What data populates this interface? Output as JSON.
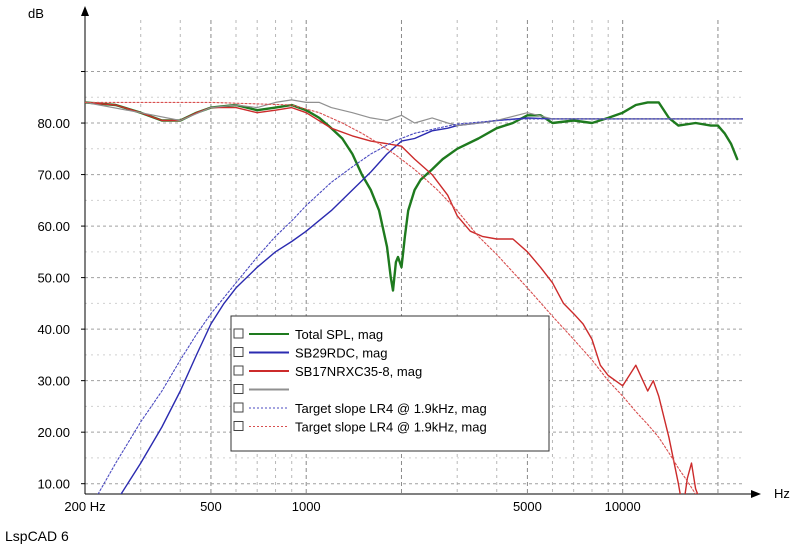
{
  "app_label": "LspCAD 6",
  "chart_data": {
    "type": "line",
    "x_scale": "log",
    "xlabel": "Hz",
    "ylabel": "dB",
    "xlim": [
      200,
      24000
    ],
    "ylim": [
      8,
      100
    ],
    "x_tick_labels": [
      {
        "x": 200,
        "label": "200 Hz"
      },
      {
        "x": 500,
        "label": "500"
      },
      {
        "x": 1000,
        "label": "1000"
      },
      {
        "x": 5000,
        "label": "5000"
      },
      {
        "x": 10000,
        "label": "10000"
      }
    ],
    "y_tick_labels": [
      {
        "y": 10,
        "label": "10.00"
      },
      {
        "y": 20,
        "label": "20.00"
      },
      {
        "y": 30,
        "label": "30.00"
      },
      {
        "y": 40,
        "label": "40.00"
      },
      {
        "y": 50,
        "label": "50.00"
      },
      {
        "y": 60,
        "label": "60.00"
      },
      {
        "y": 70,
        "label": "70.00"
      },
      {
        "y": 80,
        "label": "80.00"
      }
    ],
    "legend": {
      "position": "center-left",
      "entries": [
        {
          "label": "Total SPL, mag",
          "color": "#1e7a1e",
          "style": "solid"
        },
        {
          "label": "SB29RDC, mag",
          "color": "#2b2bb0",
          "style": "solid"
        },
        {
          "label": "SB17NRXC35-8, mag",
          "color": "#cc2b2b",
          "style": "solid"
        },
        {
          "label": "",
          "color": "#909090",
          "style": "solid"
        },
        {
          "label": "Target slope LR4 @ 1.9kHz, mag",
          "color": "#4a4ac0",
          "style": "dotted"
        },
        {
          "label": "Target slope LR4 @ 1.9kHz, mag",
          "color": "#d85050",
          "style": "dotted"
        }
      ]
    },
    "series": [
      {
        "name": "Total SPL, mag",
        "color": "#1e7a1e",
        "width": 2.4,
        "dash": "",
        "points": [
          [
            200,
            84
          ],
          [
            250,
            83.5
          ],
          [
            300,
            82
          ],
          [
            350,
            80.5
          ],
          [
            400,
            80.5
          ],
          [
            450,
            82
          ],
          [
            500,
            83
          ],
          [
            600,
            83.5
          ],
          [
            700,
            82.5
          ],
          [
            800,
            83
          ],
          [
            900,
            83.5
          ],
          [
            1000,
            82.5
          ],
          [
            1100,
            81
          ],
          [
            1200,
            79
          ],
          [
            1300,
            77
          ],
          [
            1400,
            74
          ],
          [
            1500,
            70
          ],
          [
            1600,
            67
          ],
          [
            1700,
            63
          ],
          [
            1800,
            56
          ],
          [
            1850,
            50
          ],
          [
            1880,
            47.5
          ],
          [
            1920,
            53
          ],
          [
            1950,
            54
          ],
          [
            2000,
            52
          ],
          [
            2050,
            58
          ],
          [
            2100,
            63
          ],
          [
            2200,
            67
          ],
          [
            2300,
            69
          ],
          [
            2500,
            71
          ],
          [
            2700,
            73
          ],
          [
            3000,
            75
          ],
          [
            3500,
            77
          ],
          [
            4000,
            79
          ],
          [
            4500,
            80
          ],
          [
            5000,
            81.5
          ],
          [
            5500,
            81.5
          ],
          [
            6000,
            80
          ],
          [
            7000,
            80.5
          ],
          [
            8000,
            80
          ],
          [
            9000,
            81
          ],
          [
            10000,
            82
          ],
          [
            11000,
            83.5
          ],
          [
            12000,
            84
          ],
          [
            13000,
            84
          ],
          [
            14000,
            81
          ],
          [
            15000,
            79.5
          ],
          [
            17000,
            80
          ],
          [
            19000,
            79.5
          ],
          [
            20000,
            79.5
          ],
          [
            21000,
            78
          ],
          [
            22000,
            76
          ],
          [
            23000,
            73
          ]
        ]
      },
      {
        "name": "SB29RDC, mag",
        "color": "#2b2bb0",
        "width": 1.4,
        "dash": "",
        "points": [
          [
            260,
            8
          ],
          [
            300,
            14
          ],
          [
            350,
            21
          ],
          [
            400,
            28
          ],
          [
            450,
            35
          ],
          [
            500,
            41
          ],
          [
            550,
            45
          ],
          [
            600,
            48
          ],
          [
            700,
            52
          ],
          [
            800,
            55
          ],
          [
            900,
            57
          ],
          [
            1000,
            59
          ],
          [
            1200,
            63
          ],
          [
            1400,
            67
          ],
          [
            1600,
            70.5
          ],
          [
            1800,
            74
          ],
          [
            2000,
            76.5
          ],
          [
            2200,
            77
          ],
          [
            2500,
            78.5
          ],
          [
            2800,
            79
          ],
          [
            3000,
            79.5
          ],
          [
            3500,
            80
          ],
          [
            4000,
            80.5
          ],
          [
            5000,
            81
          ],
          [
            6000,
            80.8
          ],
          [
            8000,
            80.8
          ],
          [
            10000,
            80.8
          ],
          [
            15000,
            80.8
          ],
          [
            24000,
            80.8
          ]
        ]
      },
      {
        "name": "SB17NRXC35-8, mag",
        "color": "#cc2b2b",
        "width": 1.4,
        "dash": "",
        "points": [
          [
            200,
            84
          ],
          [
            250,
            83.5
          ],
          [
            300,
            82
          ],
          [
            350,
            80.5
          ],
          [
            400,
            80.5
          ],
          [
            450,
            82
          ],
          [
            500,
            83
          ],
          [
            600,
            83
          ],
          [
            700,
            82
          ],
          [
            800,
            82.5
          ],
          [
            900,
            83
          ],
          [
            1000,
            82
          ],
          [
            1200,
            79
          ],
          [
            1400,
            77.5
          ],
          [
            1600,
            76.5
          ],
          [
            1800,
            76
          ],
          [
            2000,
            75.5
          ],
          [
            2200,
            73
          ],
          [
            2500,
            70
          ],
          [
            2800,
            66
          ],
          [
            3000,
            62
          ],
          [
            3300,
            59
          ],
          [
            3600,
            58
          ],
          [
            4000,
            57.5
          ],
          [
            4500,
            57.5
          ],
          [
            5000,
            55
          ],
          [
            5500,
            52
          ],
          [
            6000,
            49
          ],
          [
            6500,
            45
          ],
          [
            7000,
            43
          ],
          [
            7500,
            41
          ],
          [
            8000,
            38
          ],
          [
            8500,
            33
          ],
          [
            9000,
            31
          ],
          [
            10000,
            29
          ],
          [
            11000,
            33
          ],
          [
            12000,
            28
          ],
          [
            12500,
            30
          ],
          [
            13000,
            27
          ],
          [
            14000,
            19
          ],
          [
            15000,
            10
          ],
          [
            15500,
            5
          ],
          [
            16000,
            11
          ],
          [
            16500,
            14
          ],
          [
            17000,
            9
          ],
          [
            17500,
            7
          ]
        ]
      },
      {
        "name": "",
        "color": "#909090",
        "width": 1.2,
        "dash": "",
        "points": [
          [
            200,
            84
          ],
          [
            300,
            82
          ],
          [
            400,
            80.5
          ],
          [
            500,
            83
          ],
          [
            600,
            83.5
          ],
          [
            700,
            83
          ],
          [
            800,
            84
          ],
          [
            900,
            84.5
          ],
          [
            1000,
            84
          ],
          [
            1100,
            84
          ],
          [
            1200,
            83
          ],
          [
            1400,
            82
          ],
          [
            1600,
            81
          ],
          [
            1800,
            80.5
          ],
          [
            2000,
            81.5
          ],
          [
            2200,
            80
          ],
          [
            2500,
            81
          ],
          [
            2800,
            80
          ],
          [
            3000,
            79.5
          ],
          [
            3500,
            80
          ],
          [
            4000,
            80.5
          ],
          [
            5000,
            82
          ],
          [
            6000,
            80.8
          ],
          [
            8000,
            80.8
          ],
          [
            10000,
            80.8
          ],
          [
            15000,
            80.8
          ],
          [
            24000,
            80.8
          ]
        ]
      },
      {
        "name": "Target slope LR4 @ 1.9kHz, mag",
        "color": "#4a4ac0",
        "width": 1.1,
        "dash": "2,2",
        "points": [
          [
            220,
            8
          ],
          [
            250,
            14
          ],
          [
            300,
            22
          ],
          [
            350,
            28
          ],
          [
            400,
            34
          ],
          [
            450,
            39
          ],
          [
            500,
            43
          ],
          [
            600,
            49
          ],
          [
            700,
            54
          ],
          [
            800,
            58
          ],
          [
            900,
            61
          ],
          [
            1000,
            64
          ],
          [
            1200,
            68.5
          ],
          [
            1400,
            71.5
          ],
          [
            1600,
            74
          ],
          [
            1900,
            76.5
          ],
          [
            2200,
            78
          ],
          [
            2600,
            79
          ],
          [
            3000,
            79.8
          ],
          [
            4000,
            80.5
          ],
          [
            5000,
            80.8
          ],
          [
            10000,
            80.8
          ],
          [
            24000,
            80.8
          ]
        ]
      },
      {
        "name": "Target slope LR4 @ 1.9kHz, mag",
        "color": "#d85050",
        "width": 1.1,
        "dash": "2,2",
        "points": [
          [
            200,
            84
          ],
          [
            500,
            84
          ],
          [
            900,
            83.5
          ],
          [
            1100,
            82
          ],
          [
            1300,
            80
          ],
          [
            1500,
            78
          ],
          [
            1700,
            76
          ],
          [
            1900,
            74
          ],
          [
            2200,
            71
          ],
          [
            2600,
            67
          ],
          [
            3000,
            63
          ],
          [
            3500,
            58
          ],
          [
            4000,
            54.5
          ],
          [
            5000,
            48
          ],
          [
            6000,
            42.5
          ],
          [
            7000,
            38
          ],
          [
            8000,
            34
          ],
          [
            9000,
            30
          ],
          [
            10000,
            27
          ],
          [
            11000,
            24
          ],
          [
            12000,
            21.5
          ],
          [
            13000,
            19
          ],
          [
            14000,
            16
          ],
          [
            15000,
            13
          ],
          [
            16000,
            10.5
          ],
          [
            17000,
            8
          ]
        ]
      }
    ]
  }
}
